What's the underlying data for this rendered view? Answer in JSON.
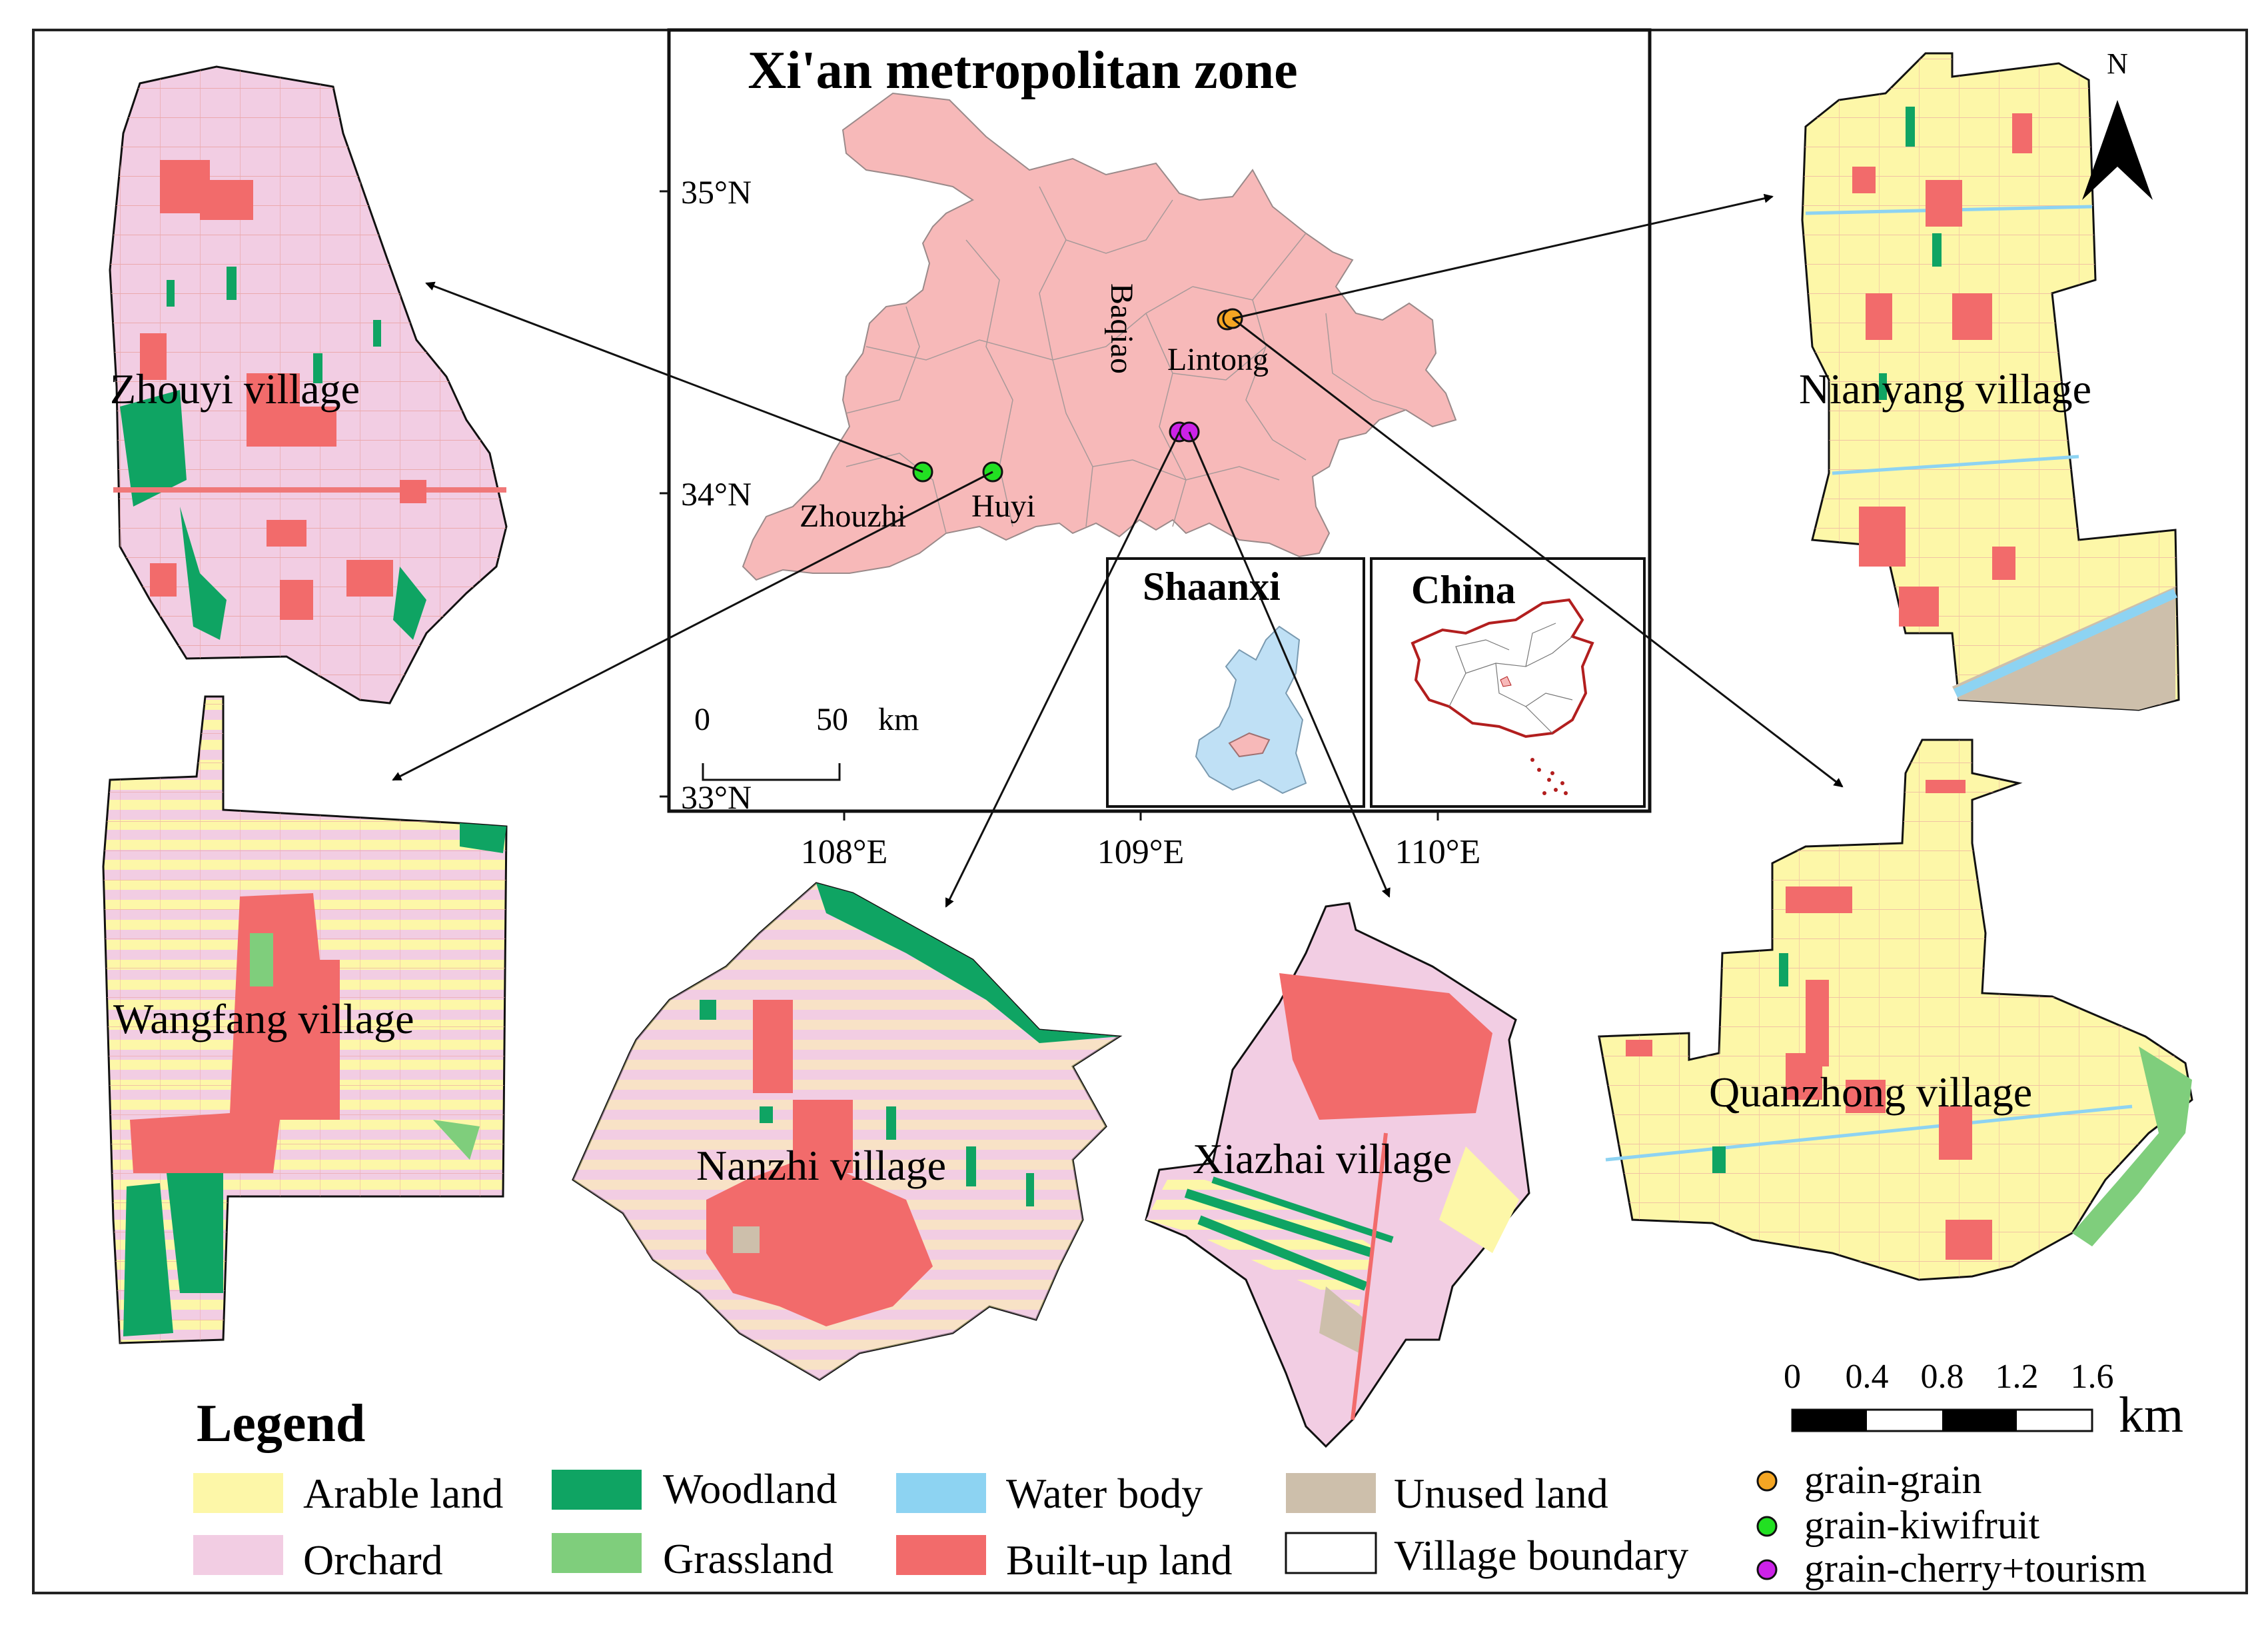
{
  "map": {
    "inset_title": "Xi'an metropolitan zone",
    "lat_labels": [
      "35°N",
      "34°N",
      "33°N"
    ],
    "lon_labels": [
      "108°E",
      "109°E",
      "110°E"
    ],
    "north_label": "N",
    "inset_scale": {
      "zero": "0",
      "fifty": "50",
      "unit": "km"
    },
    "places": {
      "baqiao": "Baqiao",
      "lintong": "Lintong",
      "zhouzhi": "Zhouzhi",
      "huyi": "Huyi"
    },
    "sub_insets": {
      "shaanxi": "Shaanxi",
      "china": "China"
    },
    "villages": {
      "zhouyi": "Zhouyi village",
      "wangfang": "Wangfang village",
      "nanzhi": "Nanzhi village",
      "xiazhai": "Xiazhai village",
      "nianyang": "Nianyang village",
      "quanzhong": "Quanzhong village"
    },
    "scalebar": {
      "ticks": [
        "0",
        "0.4",
        "0.8",
        "1.2",
        "1.6"
      ],
      "unit": "km"
    }
  },
  "legend": {
    "title": "Legend",
    "items": [
      {
        "label": "Arable land",
        "color": "#fdf7a8"
      },
      {
        "label": "Orchard",
        "color": "#f2cde3"
      },
      {
        "label": "Woodland",
        "color": "#0fa463"
      },
      {
        "label": "Grassland",
        "color": "#7fce7c"
      },
      {
        "label": "Water body",
        "color": "#8dd3f2"
      },
      {
        "label": "Built-up land",
        "color": "#f26b6b"
      },
      {
        "label": "Unused land",
        "color": "#cdbfab"
      },
      {
        "label": "Village boundary",
        "color": "#ffffff"
      }
    ],
    "points": [
      {
        "label": "grain-grain",
        "color": "#f5a623"
      },
      {
        "label": "grain-kiwifruit",
        "color": "#22e022"
      },
      {
        "label": "grain-cherry+tourism",
        "color": "#cc22e8"
      }
    ]
  }
}
